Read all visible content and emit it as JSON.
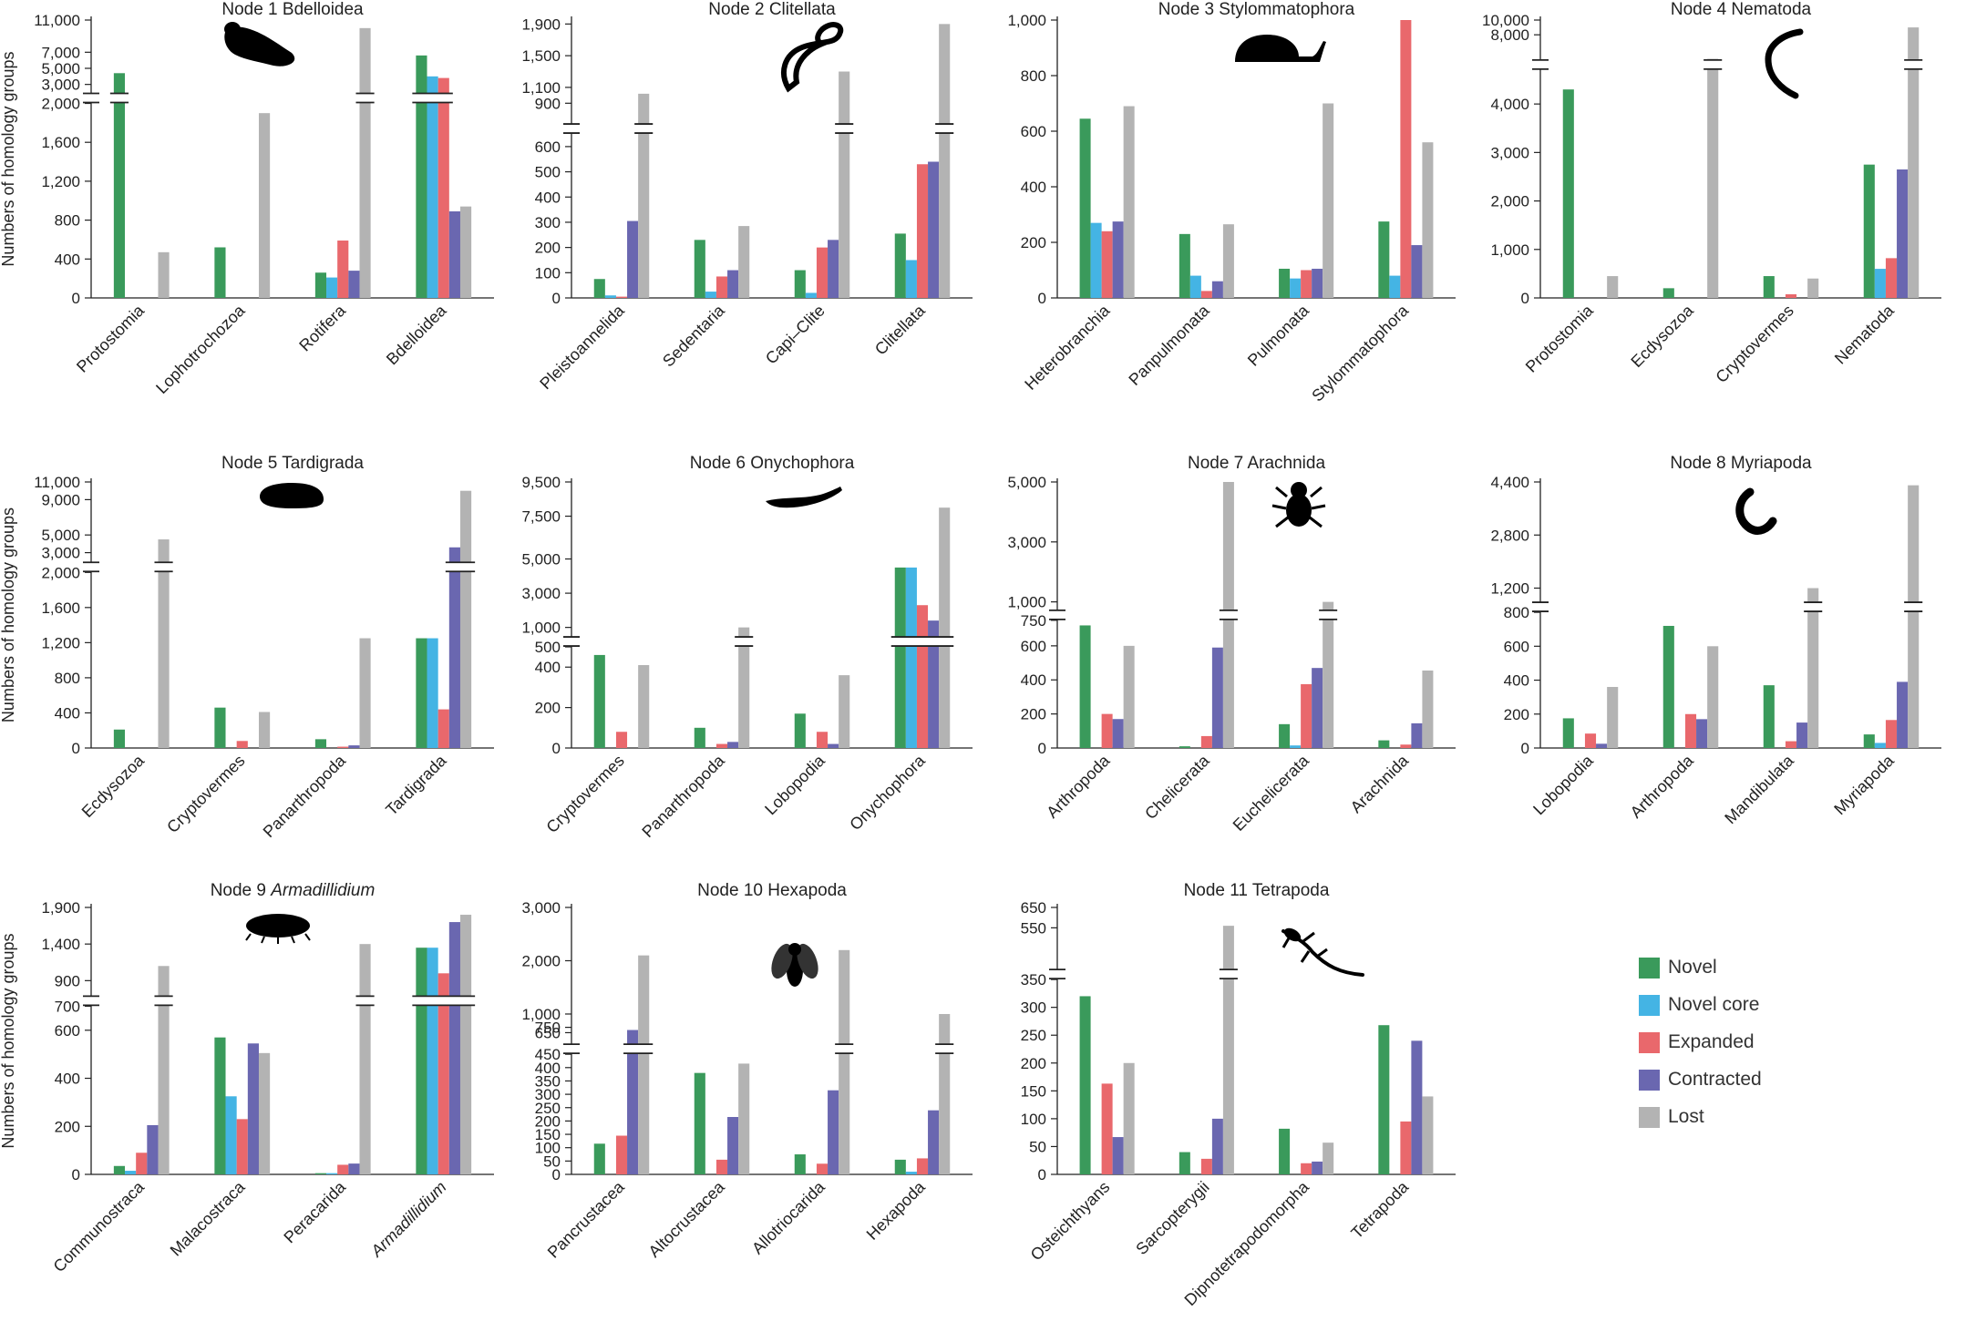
{
  "colors": {
    "novel": "#3a9a5b",
    "novel_core": "#44b4e4",
    "expanded": "#e9686c",
    "contracted": "#6a67b0",
    "lost": "#b3b3b3"
  },
  "y_axis_label": "Numbers of homology groups",
  "legend": [
    {
      "key": "novel",
      "label": "Novel"
    },
    {
      "key": "novel_core",
      "label": "Novel core"
    },
    {
      "key": "expanded",
      "label": "Expanded"
    },
    {
      "key": "contracted",
      "label": "Contracted"
    },
    {
      "key": "lost",
      "label": "Lost"
    }
  ],
  "chart_data": [
    {
      "type": "bar",
      "title": "Node 1 Bdelloidea",
      "icon": "rotifer-silhouette-icon",
      "categories": [
        "Protostomia",
        "Lophotrochozoa",
        "Rotifera",
        "Bdelloidea"
      ],
      "y_segments": [
        {
          "min": 0,
          "max": 2000,
          "ticks": [
            0,
            400,
            800,
            1200,
            1600,
            2000
          ]
        },
        {
          "min": 2000,
          "max": 11000,
          "ticks": [
            3000,
            5000,
            7000,
            11000
          ]
        }
      ],
      "series": [
        {
          "name": "Novel",
          "values": [
            4400,
            520,
            260,
            6600
          ]
        },
        {
          "name": "Novel core",
          "values": [
            0,
            0,
            210,
            4000
          ]
        },
        {
          "name": "Expanded",
          "values": [
            0,
            0,
            590,
            3800
          ]
        },
        {
          "name": "Contracted",
          "values": [
            0,
            0,
            280,
            890
          ]
        },
        {
          "name": "Lost",
          "values": [
            470,
            1900,
            10000,
            940
          ]
        }
      ]
    },
    {
      "type": "bar",
      "title": "Node 2 Clitellata",
      "icon": "worm-silhouette-icon",
      "categories": [
        "Pleistoannelida",
        "Sedentaria",
        "Capi–Clite",
        "Clitellata"
      ],
      "y_segments": [
        {
          "min": 0,
          "max": 650,
          "ticks": [
            0,
            100,
            200,
            300,
            400,
            500,
            600
          ]
        },
        {
          "min": 650,
          "max": 1950,
          "ticks": [
            900,
            1100,
            1500,
            1900
          ]
        }
      ],
      "series": [
        {
          "name": "Novel",
          "values": [
            75,
            230,
            110,
            255
          ]
        },
        {
          "name": "Novel core",
          "values": [
            10,
            25,
            20,
            150
          ]
        },
        {
          "name": "Expanded",
          "values": [
            5,
            85,
            200,
            530
          ]
        },
        {
          "name": "Contracted",
          "values": [
            305,
            110,
            230,
            540
          ]
        },
        {
          "name": "Lost",
          "values": [
            1020,
            285,
            1300,
            1900
          ]
        }
      ]
    },
    {
      "type": "bar",
      "title": "Node 3 Stylommatophora",
      "icon": "snail-silhouette-icon",
      "categories": [
        "Heterobranchia",
        "Panpulmonata",
        "Pulmonata",
        "Stylommatophora"
      ],
      "y_segments": [
        {
          "min": 0,
          "max": 1000,
          "ticks": [
            0,
            200,
            400,
            600,
            800,
            1000
          ]
        }
      ],
      "series": [
        {
          "name": "Novel",
          "values": [
            645,
            230,
            105,
            275
          ]
        },
        {
          "name": "Novel core",
          "values": [
            270,
            80,
            70,
            80
          ]
        },
        {
          "name": "Expanded",
          "values": [
            240,
            25,
            100,
            1020
          ]
        },
        {
          "name": "Contracted",
          "values": [
            275,
            60,
            105,
            190
          ]
        },
        {
          "name": "Lost",
          "values": [
            690,
            265,
            700,
            560
          ]
        }
      ]
    },
    {
      "type": "bar",
      "title": "Node 4 Nematoda",
      "icon": "nematode-silhouette-icon",
      "categories": [
        "Protostomia",
        "Ecdysozoa",
        "Cryptovermes",
        "Nematoda"
      ],
      "y_segments": [
        {
          "min": 0,
          "max": 4700,
          "ticks": [
            0,
            1000,
            2000,
            3000,
            4000
          ]
        },
        {
          "min": 4700,
          "max": 10000,
          "ticks": [
            8000,
            10000
          ]
        }
      ],
      "series": [
        {
          "name": "Novel",
          "values": [
            4300,
            200,
            450,
            2750
          ]
        },
        {
          "name": "Novel core",
          "values": [
            0,
            0,
            0,
            600
          ]
        },
        {
          "name": "Expanded",
          "values": [
            0,
            0,
            75,
            820
          ]
        },
        {
          "name": "Contracted",
          "values": [
            0,
            0,
            0,
            2650
          ]
        },
        {
          "name": "Lost",
          "values": [
            450,
            4750,
            400,
            9000
          ]
        }
      ]
    },
    {
      "type": "bar",
      "title": "Node 5 Tardigrada",
      "icon": "tardigrade-silhouette-icon",
      "categories": [
        "Ecdysozoa",
        "Cryptovermes",
        "Panarthropoda",
        "Tardigrada"
      ],
      "y_segments": [
        {
          "min": 0,
          "max": 2000,
          "ticks": [
            0,
            400,
            800,
            1200,
            1600,
            2000
          ]
        },
        {
          "min": 2000,
          "max": 11000,
          "ticks": [
            3000,
            5000,
            9000,
            11000
          ]
        }
      ],
      "series": [
        {
          "name": "Novel",
          "values": [
            210,
            460,
            100,
            1250
          ]
        },
        {
          "name": "Novel core",
          "values": [
            0,
            0,
            0,
            1250
          ]
        },
        {
          "name": "Expanded",
          "values": [
            0,
            80,
            15,
            440
          ]
        },
        {
          "name": "Contracted",
          "values": [
            0,
            0,
            30,
            3600
          ]
        },
        {
          "name": "Lost",
          "values": [
            4500,
            410,
            1250,
            10000
          ]
        }
      ]
    },
    {
      "type": "bar",
      "title": "Node 6 Onychophora",
      "icon": "velvet-worm-silhouette-icon",
      "categories": [
        "Cryptovermes",
        "Panarthropoda",
        "Lobopodia",
        "Onychophora"
      ],
      "y_segments": [
        {
          "min": 0,
          "max": 500,
          "ticks": [
            0,
            200,
            400,
            500
          ]
        },
        {
          "min": 500,
          "max": 9500,
          "ticks": [
            1000,
            3000,
            5000,
            7500,
            9500
          ]
        }
      ],
      "series": [
        {
          "name": "Novel",
          "values": [
            460,
            100,
            170,
            4500
          ]
        },
        {
          "name": "Novel core",
          "values": [
            0,
            0,
            0,
            4500
          ]
        },
        {
          "name": "Expanded",
          "values": [
            80,
            20,
            80,
            2300
          ]
        },
        {
          "name": "Contracted",
          "values": [
            0,
            30,
            20,
            1400
          ]
        },
        {
          "name": "Lost",
          "values": [
            410,
            1000,
            360,
            8000
          ]
        }
      ]
    },
    {
      "type": "bar",
      "title": "Node 7 Arachnida",
      "icon": "spider-silhouette-icon",
      "categories": [
        "Arthropoda",
        "Chelicerata",
        "Euchelicerata",
        "Arachnida"
      ],
      "y_segments": [
        {
          "min": 0,
          "max": 750,
          "ticks": [
            0,
            200,
            400,
            600,
            750
          ]
        },
        {
          "min": 750,
          "max": 5000,
          "ticks": [
            1000,
            3000,
            5000
          ]
        }
      ],
      "series": [
        {
          "name": "Novel",
          "values": [
            720,
            10,
            140,
            45
          ]
        },
        {
          "name": "Novel core",
          "values": [
            0,
            0,
            15,
            0
          ]
        },
        {
          "name": "Expanded",
          "values": [
            200,
            70,
            375,
            20
          ]
        },
        {
          "name": "Contracted",
          "values": [
            170,
            590,
            470,
            145
          ]
        },
        {
          "name": "Lost",
          "values": [
            600,
            5200,
            1000,
            455
          ]
        }
      ]
    },
    {
      "type": "bar",
      "title": "Node 8 Myriapoda",
      "icon": "centipede-silhouette-icon",
      "categories": [
        "Lobopodia",
        "Arthropoda",
        "Mandibulata",
        "Myriapoda"
      ],
      "y_segments": [
        {
          "min": 0,
          "max": 800,
          "ticks": [
            0,
            200,
            400,
            600,
            800
          ]
        },
        {
          "min": 800,
          "max": 4400,
          "ticks": [
            1200,
            2800,
            4400
          ]
        }
      ],
      "series": [
        {
          "name": "Novel",
          "values": [
            175,
            720,
            370,
            80
          ]
        },
        {
          "name": "Novel core",
          "values": [
            0,
            0,
            0,
            30
          ]
        },
        {
          "name": "Expanded",
          "values": [
            85,
            200,
            40,
            165
          ]
        },
        {
          "name": "Contracted",
          "values": [
            25,
            170,
            150,
            390
          ]
        },
        {
          "name": "Lost",
          "values": [
            360,
            600,
            1200,
            4300
          ]
        }
      ]
    },
    {
      "type": "bar",
      "title": "Node 9 Armadillidium",
      "title_prefix": "Node 9 ",
      "title_italic": "Armadillidium",
      "icon": "woodlouse-silhouette-icon",
      "categories": [
        "Communostraca",
        "Malacostraca",
        "Peracarida",
        "Armadillidium"
      ],
      "italic_categories": [
        "Armadillidium"
      ],
      "y_segments": [
        {
          "min": 0,
          "max": 700,
          "ticks": [
            0,
            200,
            400,
            600,
            700
          ]
        },
        {
          "min": 700,
          "max": 1900,
          "ticks": [
            900,
            1400,
            1900
          ]
        }
      ],
      "series": [
        {
          "name": "Novel",
          "values": [
            35,
            570,
            5,
            1350
          ]
        },
        {
          "name": "Novel core",
          "values": [
            15,
            325,
            5,
            1350
          ]
        },
        {
          "name": "Expanded",
          "values": [
            90,
            230,
            40,
            1000
          ]
        },
        {
          "name": "Contracted",
          "values": [
            205,
            545,
            45,
            1700
          ]
        },
        {
          "name": "Lost",
          "values": [
            1100,
            505,
            1400,
            1800
          ]
        }
      ]
    },
    {
      "type": "bar",
      "title": "Node 10 Hexapoda",
      "icon": "fly-silhouette-icon",
      "categories": [
        "Pancrustacea",
        "Altocrustacea",
        "Allotriocarida",
        "Hexapoda"
      ],
      "y_segments": [
        {
          "min": 0,
          "max": 450,
          "ticks": [
            0,
            50,
            100,
            150,
            200,
            250,
            300,
            350,
            400,
            450
          ]
        },
        {
          "min": 450,
          "max": 3000,
          "ticks": [
            650,
            750,
            1000,
            2000,
            3000
          ]
        }
      ],
      "series": [
        {
          "name": "Novel",
          "values": [
            115,
            380,
            75,
            55
          ]
        },
        {
          "name": "Novel core",
          "values": [
            0,
            0,
            0,
            10
          ]
        },
        {
          "name": "Expanded",
          "values": [
            145,
            55,
            40,
            60
          ]
        },
        {
          "name": "Contracted",
          "values": [
            700,
            215,
            315,
            240
          ]
        },
        {
          "name": "Lost",
          "values": [
            2100,
            415,
            2200,
            1000
          ]
        }
      ]
    },
    {
      "type": "bar",
      "title": "Node 11 Tetrapoda",
      "icon": "lizard-silhouette-icon",
      "categories": [
        "Osteichthyans",
        "Sarcopterygii",
        "Dipnotetrapodomorpha",
        "Tetrapoda"
      ],
      "y_segments": [
        {
          "min": 0,
          "max": 350,
          "ticks": [
            0,
            50,
            100,
            150,
            200,
            250,
            300,
            350
          ]
        },
        {
          "min": 350,
          "max": 650,
          "ticks": [
            550,
            650
          ]
        }
      ],
      "series": [
        {
          "name": "Novel",
          "values": [
            320,
            40,
            82,
            268
          ]
        },
        {
          "name": "Novel core",
          "values": [
            0,
            0,
            0,
            0
          ]
        },
        {
          "name": "Expanded",
          "values": [
            163,
            28,
            20,
            95
          ]
        },
        {
          "name": "Contracted",
          "values": [
            67,
            100,
            23,
            240
          ]
        },
        {
          "name": "Lost",
          "values": [
            200,
            560,
            57,
            140
          ]
        }
      ]
    }
  ]
}
